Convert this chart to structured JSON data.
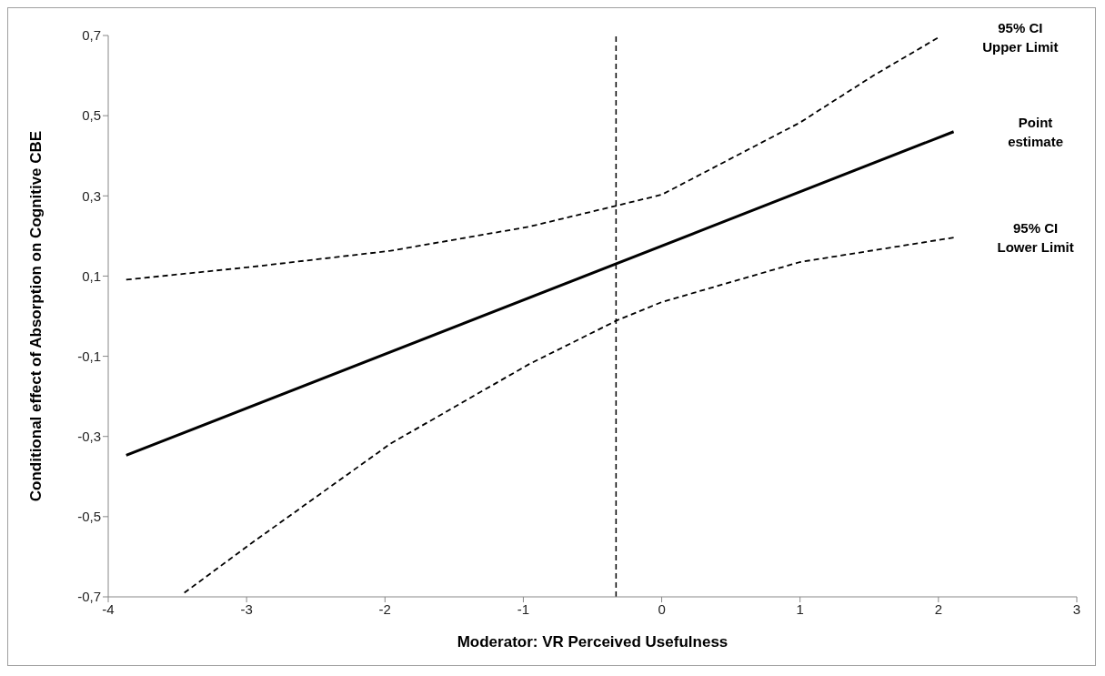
{
  "chart_data": {
    "type": "line",
    "xlabel": "Moderator: VR Perceived Usefulness",
    "ylabel": "Conditional  effect of Absorption on Cognitive CBE",
    "series": [
      {
        "name": "95% CI Upper Limit",
        "color": "#000000",
        "line_style": "dashed",
        "x": [
          -3.87,
          -2.96,
          -1.96,
          -0.96,
          -0.32,
          0,
          1,
          1.53,
          2.0
        ],
        "values": [
          0.091,
          0.123,
          0.163,
          0.223,
          0.276,
          0.303,
          0.483,
          0.6,
          0.695
        ]
      },
      {
        "name": "Point estimate",
        "color": "#000000",
        "line_style": "solid",
        "x": [
          -3.87,
          2.11
        ],
        "values": [
          -0.347,
          0.46
        ]
      },
      {
        "name": "95% CI Lower Limit",
        "color": "#000000",
        "line_style": "dashed",
        "x": [
          -3.45,
          -2.96,
          -1.96,
          -0.96,
          -0.32,
          0,
          1,
          2.11
        ],
        "values": [
          -0.69,
          -0.565,
          -0.318,
          -0.12,
          -0.01,
          0.035,
          0.135,
          0.196
        ]
      }
    ],
    "xlim": [
      -4,
      3
    ],
    "xticks": [
      -4,
      -3,
      -2,
      -1,
      0,
      1,
      2,
      3
    ],
    "ylim": [
      -0.7,
      0.7
    ],
    "yticks": [
      {
        "value": -0.7,
        "label": "-0,7"
      },
      {
        "value": -0.5,
        "label": "-0,5"
      },
      {
        "value": -0.3,
        "label": "-0,3"
      },
      {
        "value": -0.1,
        "label": "-0,1"
      },
      {
        "value": 0.1,
        "label": "0,1"
      },
      {
        "value": 0.3,
        "label": "0,3"
      },
      {
        "value": 0.5,
        "label": "0,5"
      },
      {
        "value": 0.7,
        "label": "0,7"
      }
    ],
    "ref_lines": [
      {
        "axis": "x",
        "value": -0.33,
        "color": "#000000",
        "line_style": "dashed"
      }
    ],
    "grid": false,
    "legend": false,
    "marker": "none"
  }
}
